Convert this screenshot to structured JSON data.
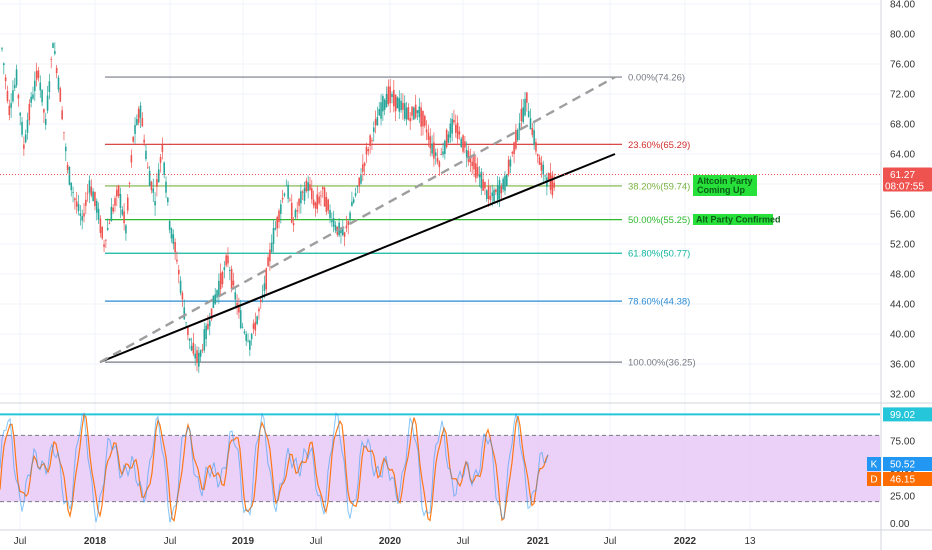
{
  "chart_data": [
    {
      "type": "line",
      "panel": "price",
      "ylim": [
        32,
        84
      ],
      "y_ticks": [
        "32.00",
        "36.00",
        "40.00",
        "44.00",
        "48.00",
        "52.00",
        "56.00",
        "60.00",
        "64.00",
        "68.00",
        "72.00",
        "76.00",
        "80.00",
        "84.00"
      ],
      "x_ticks": [
        "Jul",
        "2018",
        "Jul",
        "2019",
        "Jul",
        "2020",
        "Jul",
        "2021",
        "Jul",
        "2022",
        "13"
      ],
      "grid": true,
      "series": [
        {
          "values": [
            78.0,
            70.0,
            74.0,
            65.0,
            71.0,
            75.0,
            68.0,
            79.0,
            72.0,
            62.0,
            58.0,
            55.0,
            60.0,
            57.0,
            52.0,
            56.0,
            59.0,
            54.0,
            66.0,
            70.0,
            62.0,
            58.0,
            65.0,
            55.0,
            50.0,
            43.0,
            38.0,
            36.5,
            40.0,
            44.0,
            47.0,
            50.0,
            45.0,
            41.0,
            39.0,
            42.0,
            46.0,
            52.0,
            56.0,
            60.0,
            55.0,
            58.0,
            60.0,
            57.0,
            59.0,
            56.0,
            54.0,
            53.0,
            57.0,
            60.0,
            64.0,
            67.0,
            70.0,
            72.0,
            71.0,
            70.0,
            69.0,
            70.0,
            68.0,
            65.0,
            63.0,
            66.0,
            68.0,
            66.0,
            64.0,
            62.0,
            60.0,
            58.0,
            59.0,
            60.0,
            64.0,
            68.0,
            71.0,
            66.0,
            62.0,
            60.5,
            59.5
          ],
          "color": "#26a69a"
        }
      ],
      "fib_levels": [
        {
          "label": "0.00%(74.26)",
          "value": 74.26,
          "color": "#787b86"
        },
        {
          "label": "23.60%(65.29)",
          "value": 65.29,
          "color": "#d32f2f"
        },
        {
          "label": "38.20%(59.74)",
          "value": 59.74,
          "color": "#7cb342"
        },
        {
          "label": "50.00%(55.25)",
          "value": 55.25,
          "color": "#2eb82e"
        },
        {
          "label": "61.80%(50.77)",
          "value": 50.77,
          "color": "#12b5a0"
        },
        {
          "label": "78.60%(44.38)",
          "value": 44.38,
          "color": "#2a8bd3"
        },
        {
          "label": "100.00%(36.25)",
          "value": 36.25,
          "color": "#787b86"
        }
      ],
      "trendlines": [
        {
          "name": "support",
          "from_value": 36.25,
          "to_value": 64.0,
          "color": "#000000",
          "style": "solid"
        },
        {
          "name": "dashed",
          "from_value": 36.25,
          "to_value": 74.26,
          "color": "#9e9e9e",
          "style": "dashed"
        }
      ],
      "annotations": [
        {
          "text": "Altcoin Party Coming Up",
          "lines": [
            "Altcoin Party",
            "Coming Up"
          ],
          "color": "#27e03a"
        },
        {
          "text": "Alt Party Confirmed",
          "lines": [
            "Alt Party Confirmed"
          ],
          "color": "#27e03a"
        }
      ],
      "last_price": {
        "value": 61.27,
        "label": "61.27",
        "countdown": "08:07:55",
        "color": "#ef5350"
      }
    },
    {
      "type": "line",
      "panel": "oscillator",
      "ylim": [
        -3,
        103
      ],
      "y_ticks": [
        "0.00",
        "25.00",
        "50.00",
        "75.00"
      ],
      "band": {
        "lower": 20,
        "upper": 80,
        "color": "#e7c9f7"
      },
      "upper_line": {
        "value": 99.02,
        "label": "99.02",
        "color": "#26c6da"
      },
      "series": [
        {
          "name": "K",
          "value": 50.52,
          "label": "50.52",
          "color": "#2196f3"
        },
        {
          "name": "D",
          "value": 46.15,
          "label": "46.15",
          "color": "#ff6d00"
        }
      ]
    }
  ]
}
